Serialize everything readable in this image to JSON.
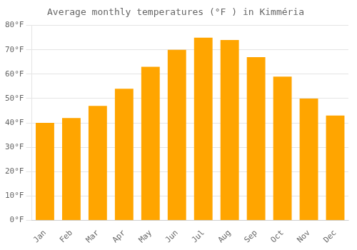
{
  "chart_data": {
    "type": "bar",
    "title": "Average monthly temperatures (°F ) in Kimméria",
    "categories": [
      "Jan",
      "Feb",
      "Mar",
      "Apr",
      "May",
      "Jun",
      "Jul",
      "Aug",
      "Sep",
      "Oct",
      "Nov",
      "Dec"
    ],
    "values": [
      40,
      42,
      47,
      54,
      63,
      70,
      75,
      74,
      67,
      59,
      50,
      43
    ],
    "color": "#FFA500",
    "ylim": [
      0,
      80
    ],
    "yticks": [
      {
        "value": 0,
        "label": "0°F"
      },
      {
        "value": 10,
        "label": "10°F"
      },
      {
        "value": 20,
        "label": "20°F"
      },
      {
        "value": 30,
        "label": "30°F"
      },
      {
        "value": 40,
        "label": "40°F"
      },
      {
        "value": 50,
        "label": "50°F"
      },
      {
        "value": 60,
        "label": "60°F"
      },
      {
        "value": 70,
        "label": "70°F"
      },
      {
        "value": 80,
        "label": "80°F"
      }
    ],
    "grid": true
  }
}
